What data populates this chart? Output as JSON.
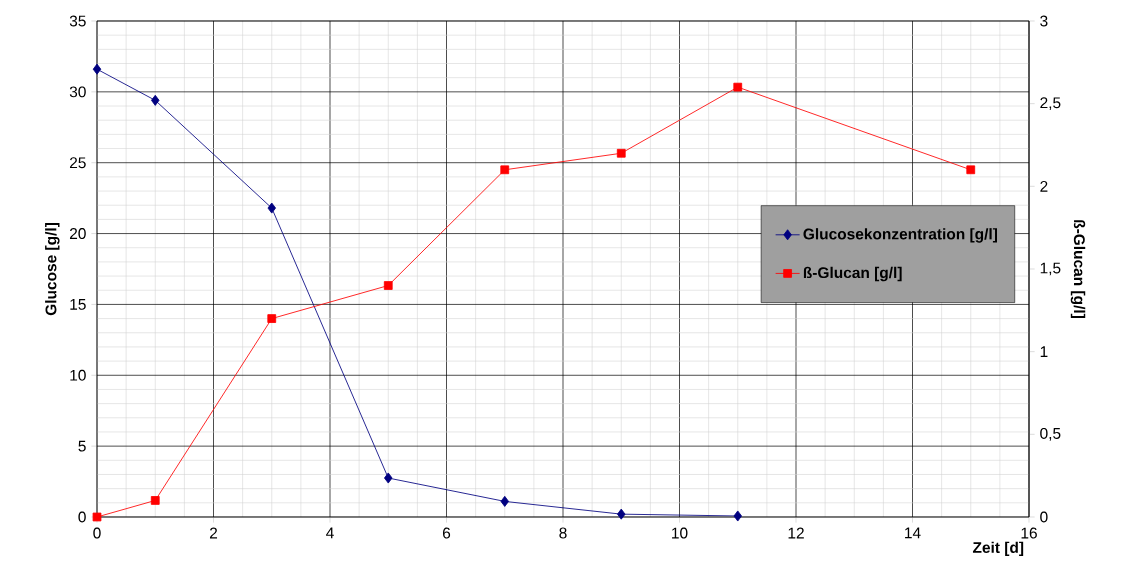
{
  "chart_data": {
    "type": "line",
    "xlabel": "Zeit [d]",
    "ylabel": "Glucose [g/l]",
    "y2label": "ß-Glucan [g/l]",
    "xlim": [
      0,
      16
    ],
    "xticks": [
      0,
      2,
      4,
      6,
      8,
      10,
      12,
      14,
      16
    ],
    "ylim": [
      0,
      35
    ],
    "yticks": [
      0,
      5,
      10,
      15,
      20,
      25,
      30,
      35
    ],
    "y2lim": [
      0,
      3
    ],
    "y2ticks": [
      0,
      {
        "value": 0.5,
        "label": "0,5"
      },
      1,
      {
        "value": 1.5,
        "label": "1,5"
      },
      2,
      {
        "value": 2.5,
        "label": "2,5"
      },
      3
    ],
    "grid": true,
    "legend": "right",
    "series": [
      {
        "name": "Glucosekonzentration [g/l]",
        "color": "#000080",
        "marker": "diamond",
        "x": [
          0,
          1,
          3,
          5,
          7,
          9,
          11
        ],
        "values": [
          31.6,
          29.4,
          21.8,
          2.75,
          1.1,
          0.2,
          0.07
        ]
      },
      {
        "name": "ß-Glucan [g/l]",
        "color": "#ff0000",
        "marker": "square",
        "axis": "y2",
        "x": [
          0,
          1,
          3,
          5,
          7,
          9,
          11,
          15
        ],
        "values": [
          0,
          0.1,
          1.2,
          1.4,
          2.1,
          2.2,
          2.6,
          2.1
        ]
      }
    ]
  }
}
